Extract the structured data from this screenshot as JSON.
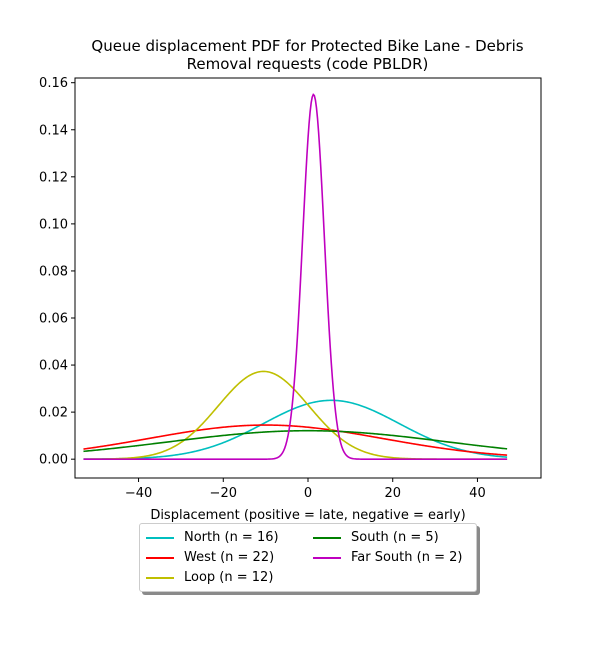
{
  "chart_data": {
    "type": "line",
    "title_line1": "Queue displacement PDF for Protected Bike Lane - Debris",
    "title_line2": "Removal  requests (code PBLDR)",
    "xlabel": "Displacement (positive = late, negative = early)",
    "ylabel": "",
    "xlim": [
      -55,
      55
    ],
    "ylim": [
      -0.008,
      0.162
    ],
    "xticks": [
      -40,
      -20,
      0,
      20,
      40
    ],
    "xtick_labels": [
      "−40",
      "−20",
      "0",
      "20",
      "40"
    ],
    "yticks": [
      0.0,
      0.02,
      0.04,
      0.06,
      0.08,
      0.1,
      0.12,
      0.14,
      0.16
    ],
    "ytick_labels": [
      "0.00",
      "0.02",
      "0.04",
      "0.06",
      "0.08",
      "0.10",
      "0.12",
      "0.14",
      "0.16"
    ],
    "grid": false,
    "legend_position": "below",
    "x_range_drawn": [
      -53,
      47
    ],
    "series": [
      {
        "name": "North (n = 16)",
        "color": "#00bfbf",
        "mean": 5.5,
        "sd": 16.0,
        "peak": 0.025
      },
      {
        "name": "West (n = 22)",
        "color": "#ff0000",
        "mean": -10.0,
        "sd": 27.6,
        "peak": 0.0145
      },
      {
        "name": "Loop (n = 12)",
        "color": "#bfbf00",
        "mean": -10.5,
        "sd": 10.7,
        "peak": 0.0373
      },
      {
        "name": "South (n = 5)",
        "color": "#008000",
        "mean": 0.0,
        "sd": 33.0,
        "peak": 0.0121
      },
      {
        "name": "Far South (n = 2)",
        "color": "#bf00bf",
        "mean": 1.3,
        "sd": 2.57,
        "peak": 0.155
      }
    ]
  }
}
